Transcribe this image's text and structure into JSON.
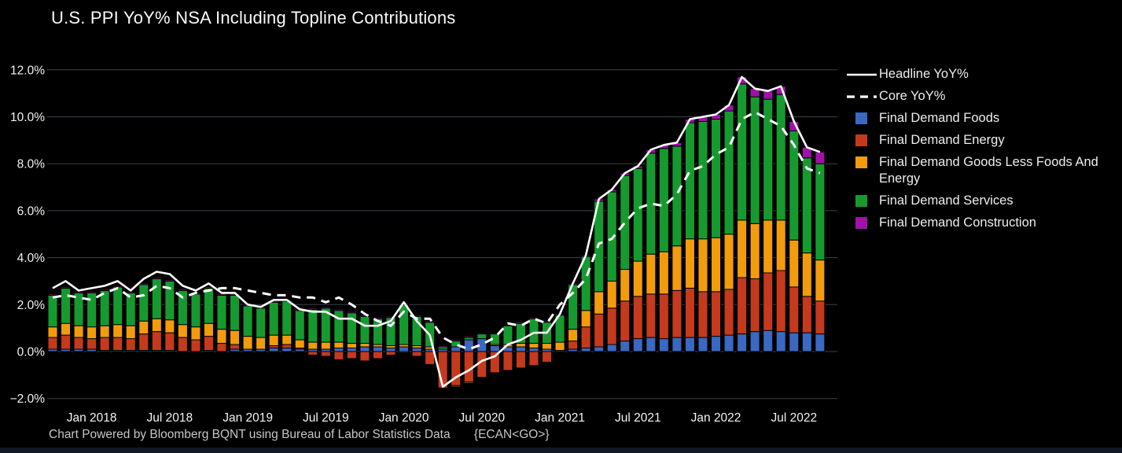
{
  "title": "U.S. PPI YoY% NSA Including Topline Contributions",
  "footer": {
    "credit": "Chart Powered by Bloomberg BQNT using Bureau of Labor Statistics Data",
    "command": "{ECAN<GO>}"
  },
  "colors": {
    "background": "#000000",
    "grid": "#3d4148",
    "axis_text": "#f2f2f2",
    "title_text": "#fafafa",
    "footer_text": "#c6c6c6",
    "line_white": "#ffffff"
  },
  "chart_data": {
    "type": "bar",
    "subtype": "stacked-bars-with-lines",
    "title": "U.S. PPI YoY% NSA Including Topline Contributions",
    "xlabel": "",
    "ylabel": "",
    "ylim": [
      -2.8,
      12.6
    ],
    "grid": true,
    "legend_position": "right",
    "y_ticks": [
      {
        "value": 12,
        "label": "12.0%"
      },
      {
        "value": 10,
        "label": "10.0%"
      },
      {
        "value": 8,
        "label": "8.0%"
      },
      {
        "value": 6,
        "label": "6.0%"
      },
      {
        "value": 4,
        "label": "4.0%"
      },
      {
        "value": 2,
        "label": "2.0%"
      },
      {
        "value": 0,
        "label": "0.0%"
      },
      {
        "value": -2,
        "label": "−2.0%"
      }
    ],
    "x_ticks": [
      {
        "index": 3,
        "label": "Jan 2018"
      },
      {
        "index": 9,
        "label": "Jul 2018"
      },
      {
        "index": 15,
        "label": "Jan 2019"
      },
      {
        "index": 21,
        "label": "Jul 2019"
      },
      {
        "index": 27,
        "label": "Jan 2020"
      },
      {
        "index": 33,
        "label": "Jul 2020"
      },
      {
        "index": 39,
        "label": "Jan 2021"
      },
      {
        "index": 45,
        "label": "Jul 2021"
      },
      {
        "index": 51,
        "label": "Jan 2022"
      },
      {
        "index": 57,
        "label": "Jul 2022"
      }
    ],
    "categories": [
      "Oct 2017",
      "Nov 2017",
      "Dec 2017",
      "Jan 2018",
      "Feb 2018",
      "Mar 2018",
      "Apr 2018",
      "May 2018",
      "Jun 2018",
      "Jul 2018",
      "Aug 2018",
      "Sep 2018",
      "Oct 2018",
      "Nov 2018",
      "Dec 2018",
      "Jan 2019",
      "Feb 2019",
      "Mar 2019",
      "Apr 2019",
      "May 2019",
      "Jun 2019",
      "Jul 2019",
      "Aug 2019",
      "Sep 2019",
      "Oct 2019",
      "Nov 2019",
      "Dec 2019",
      "Jan 2020",
      "Feb 2020",
      "Mar 2020",
      "Apr 2020",
      "May 2020",
      "Jun 2020",
      "Jul 2020",
      "Aug 2020",
      "Sep 2020",
      "Oct 2020",
      "Nov 2020",
      "Dec 2020",
      "Jan 2021",
      "Feb 2021",
      "Mar 2021",
      "Apr 2021",
      "May 2021",
      "Jun 2021",
      "Jul 2021",
      "Aug 2021",
      "Sep 2021",
      "Oct 2021",
      "Nov 2021",
      "Dec 2021",
      "Jan 2022",
      "Feb 2022",
      "Mar 2022",
      "Apr 2022",
      "May 2022",
      "Jun 2022",
      "Jul 2022",
      "Aug 2022",
      "Sep 2022"
    ],
    "series": [
      {
        "name": "Headline YoY%",
        "type": "line",
        "style": "solid",
        "color": "#ffffff",
        "values": [
          2.7,
          3.0,
          2.6,
          2.7,
          2.8,
          3.0,
          2.6,
          3.1,
          3.4,
          3.3,
          2.8,
          2.6,
          2.9,
          2.5,
          2.5,
          2.0,
          1.9,
          2.2,
          2.2,
          1.8,
          1.7,
          1.7,
          1.4,
          1.4,
          1.1,
          1.1,
          1.3,
          2.1,
          1.3,
          0.7,
          -1.5,
          -1.1,
          -0.8,
          -0.4,
          -0.2,
          0.3,
          0.5,
          0.8,
          0.8,
          1.6,
          2.9,
          4.1,
          6.5,
          6.9,
          7.6,
          7.9,
          8.6,
          8.8,
          8.9,
          9.9,
          10.0,
          10.1,
          10.5,
          11.7,
          11.2,
          11.1,
          11.3,
          9.8,
          8.7,
          8.5
        ]
      },
      {
        "name": "Core YoY%",
        "type": "line",
        "style": "dashed",
        "color": "#ffffff",
        "values": [
          2.3,
          2.4,
          2.3,
          2.2,
          2.5,
          2.7,
          2.3,
          2.4,
          2.8,
          2.7,
          2.3,
          2.5,
          2.6,
          2.7,
          2.7,
          2.6,
          2.5,
          2.4,
          2.4,
          2.3,
          2.3,
          2.1,
          2.3,
          2.0,
          1.6,
          1.3,
          1.1,
          1.7,
          1.4,
          1.4,
          0.6,
          0.3,
          0.1,
          0.3,
          0.6,
          1.2,
          1.1,
          1.4,
          1.2,
          2.0,
          2.5,
          3.1,
          4.6,
          4.8,
          5.5,
          6.1,
          6.3,
          6.2,
          6.7,
          7.7,
          7.9,
          8.4,
          8.7,
          9.9,
          10.2,
          9.9,
          9.6,
          8.8,
          7.8,
          7.6
        ]
      },
      {
        "name": "Final Demand Foods",
        "type": "bar",
        "color": "#3a68c2",
        "values": [
          0.1,
          0.1,
          0.1,
          0.1,
          0.05,
          0.05,
          0.05,
          0.05,
          0.05,
          0.05,
          0.0,
          0.0,
          0.05,
          0.0,
          0.1,
          0.1,
          0.1,
          0.15,
          0.15,
          0.1,
          0.1,
          0.1,
          0.15,
          0.15,
          0.2,
          0.2,
          0.15,
          0.2,
          0.15,
          0.1,
          0.1,
          0.2,
          0.5,
          0.55,
          0.25,
          0.2,
          0.2,
          0.15,
          0.1,
          0.05,
          0.1,
          0.15,
          0.2,
          0.3,
          0.45,
          0.55,
          0.6,
          0.55,
          0.6,
          0.6,
          0.6,
          0.65,
          0.7,
          0.75,
          0.85,
          0.9,
          0.85,
          0.8,
          0.8,
          0.75
        ]
      },
      {
        "name": "Final Demand Energy",
        "type": "bar",
        "color": "#c53a1d",
        "values": [
          0.5,
          0.6,
          0.5,
          0.45,
          0.55,
          0.55,
          0.5,
          0.7,
          0.8,
          0.75,
          0.6,
          0.5,
          0.6,
          0.35,
          0.2,
          0.0,
          0.0,
          0.1,
          0.15,
          0.05,
          -0.15,
          -0.2,
          -0.35,
          -0.3,
          -0.4,
          -0.3,
          -0.15,
          -0.05,
          -0.2,
          -0.55,
          -1.55,
          -1.45,
          -1.3,
          -1.1,
          -0.9,
          -0.8,
          -0.7,
          -0.6,
          -0.45,
          0.0,
          0.35,
          0.9,
          1.4,
          1.55,
          1.7,
          1.8,
          1.85,
          1.9,
          2.0,
          2.1,
          1.95,
          1.9,
          1.95,
          2.4,
          2.25,
          2.45,
          2.6,
          1.95,
          1.55,
          1.4
        ]
      },
      {
        "name": "Final Demand Goods Less Foods And Energy",
        "type": "bar",
        "color": "#f29c0c",
        "values": [
          0.45,
          0.5,
          0.5,
          0.5,
          0.5,
          0.55,
          0.55,
          0.55,
          0.55,
          0.55,
          0.55,
          0.55,
          0.55,
          0.6,
          0.6,
          0.55,
          0.5,
          0.45,
          0.4,
          0.35,
          0.3,
          0.3,
          0.25,
          0.2,
          0.15,
          0.1,
          0.1,
          0.1,
          0.1,
          0.1,
          0.0,
          -0.05,
          -0.05,
          0.0,
          0.05,
          0.1,
          0.15,
          0.2,
          0.25,
          0.35,
          0.5,
          0.7,
          0.95,
          1.15,
          1.35,
          1.5,
          1.7,
          1.8,
          1.9,
          2.1,
          2.25,
          2.3,
          2.35,
          2.45,
          2.35,
          2.25,
          2.15,
          2.0,
          1.85,
          1.75
        ]
      },
      {
        "name": "Final Demand Services",
        "type": "bar",
        "color": "#169a30",
        "values": [
          1.35,
          1.5,
          1.4,
          1.45,
          1.5,
          1.6,
          1.4,
          1.55,
          1.7,
          1.65,
          1.45,
          1.4,
          1.5,
          1.45,
          1.5,
          1.3,
          1.25,
          1.4,
          1.45,
          1.25,
          1.4,
          1.45,
          1.35,
          1.3,
          1.15,
          1.1,
          1.2,
          1.7,
          1.25,
          1.05,
          0.1,
          0.25,
          0.1,
          0.2,
          0.45,
          0.8,
          0.85,
          1.05,
          0.9,
          1.15,
          1.9,
          2.3,
          3.85,
          3.8,
          4.0,
          3.95,
          4.3,
          4.4,
          4.25,
          4.95,
          5.0,
          5.05,
          5.25,
          5.8,
          5.4,
          5.15,
          5.35,
          4.65,
          4.05,
          4.1
        ]
      },
      {
        "name": "Final Demand Construction",
        "type": "bar",
        "color": "#a011a8",
        "values": [
          0.05,
          0.05,
          0.05,
          0.05,
          0.05,
          0.05,
          0.05,
          0.05,
          0.05,
          0.05,
          0.05,
          0.05,
          0.05,
          0.05,
          0.05,
          0.05,
          0.05,
          0.05,
          0.05,
          0.05,
          0.05,
          0.05,
          0.05,
          0.05,
          0.05,
          0.05,
          0.05,
          0.05,
          0.05,
          0.05,
          0.05,
          0.05,
          0.05,
          0.0,
          0.0,
          0.0,
          0.05,
          0.05,
          0.05,
          0.05,
          0.05,
          0.05,
          0.1,
          0.1,
          0.1,
          0.1,
          0.15,
          0.15,
          0.15,
          0.15,
          0.2,
          0.2,
          0.25,
          0.3,
          0.35,
          0.35,
          0.35,
          0.4,
          0.45,
          0.5
        ]
      }
    ]
  }
}
